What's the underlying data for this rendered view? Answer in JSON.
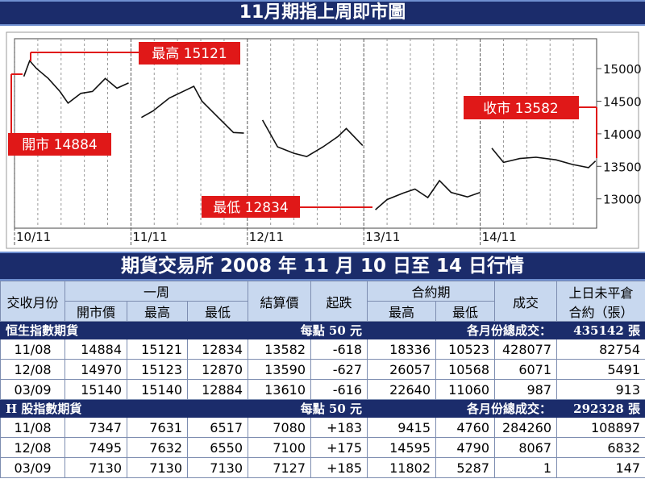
{
  "chart_data": {
    "type": "line",
    "title": "11月期指上周即市圖",
    "x": [
      0.08,
      0.13,
      0.19,
      0.29,
      0.39,
      0.46,
      0.57,
      0.67,
      0.78,
      0.88,
      0.98,
      1.03,
      1.09,
      1.19,
      1.33,
      1.54,
      1.61,
      1.75,
      1.88,
      1.97,
      2.05,
      2.13,
      2.26,
      2.4,
      2.51,
      2.65,
      2.78,
      2.85,
      2.99,
      3.05,
      3.1,
      3.2,
      3.34,
      3.44,
      3.55,
      3.65,
      3.75,
      3.89,
      4.0,
      4.05,
      4.1,
      4.2,
      4.34,
      4.48,
      4.65,
      4.79,
      4.93,
      4.99
    ],
    "series": [
      {
        "name": "期指",
        "color": "#111111",
        "values": [
          14880,
          15121,
          15000,
          14850,
          14650,
          14470,
          14620,
          14650,
          14850,
          14700,
          14780,
          null,
          14250,
          14350,
          14550,
          14730,
          14500,
          14250,
          14020,
          14010,
          null,
          14210,
          13800,
          13700,
          13650,
          13800,
          13960,
          14080,
          13820,
          null,
          12834,
          12990,
          13090,
          13150,
          13020,
          13280,
          13100,
          13030,
          13100,
          null,
          13780,
          13560,
          13620,
          13640,
          13600,
          13530,
          13480,
          13582
        ]
      }
    ],
    "xlim": [
      0,
      5
    ],
    "xticks": [
      {
        "value": 0,
        "label": "10/11"
      },
      {
        "value": 1,
        "label": "11/11"
      },
      {
        "value": 2,
        "label": "12/11"
      },
      {
        "value": 3,
        "label": "13/11"
      },
      {
        "value": 4,
        "label": "14/11"
      }
    ],
    "ylim": [
      12550,
      15460
    ],
    "yticks": [
      13000,
      13500,
      14000,
      14500,
      15000
    ],
    "annotations": [
      "最高 15121",
      "開市 14884",
      "收市 13582",
      "最低 12834"
    ]
  },
  "table": {
    "title": "期貨交易所 2008 年 11 月 10 日至 14 日行情",
    "header": {
      "month": "交收月份",
      "week": "一周",
      "open": "開市價",
      "high": "最高",
      "low": "最低",
      "settle": "結算價",
      "change": "起跌",
      "contract": "合約期",
      "c_high": "最高",
      "c_low": "最低",
      "volume": "成交",
      "oi_1": "上日未平倉",
      "oi_2": "合約（張）"
    },
    "sections": [
      {
        "name": "恒生指數期貨",
        "unit": "每點 50 元",
        "total_label": "各月份總成交：",
        "total": "435142 張",
        "rows": [
          [
            "11/08",
            "14884",
            "15121",
            "12834",
            "13582",
            "-618",
            "18336",
            "10523",
            "428077",
            "82754"
          ],
          [
            "12/08",
            "14970",
            "15123",
            "12870",
            "13590",
            "-627",
            "26057",
            "10568",
            "6071",
            "5491"
          ],
          [
            "03/09",
            "15140",
            "15140",
            "12884",
            "13610",
            "-616",
            "22640",
            "11060",
            "987",
            "913"
          ]
        ]
      },
      {
        "name": "H 股指數期貨",
        "unit": "每點 50 元",
        "total_label": "各月份總成交：",
        "total": "292328 張",
        "rows": [
          [
            "11/08",
            "7347",
            "7631",
            "6517",
            "7080",
            "+183",
            "9415",
            "4760",
            "284260",
            "108897"
          ],
          [
            "12/08",
            "7495",
            "7632",
            "6550",
            "7100",
            "+175",
            "14595",
            "4790",
            "8067",
            "6832"
          ],
          [
            "03/09",
            "7130",
            "7130",
            "7130",
            "7127",
            "+185",
            "11802",
            "5287",
            "1",
            "147"
          ]
        ]
      }
    ]
  }
}
